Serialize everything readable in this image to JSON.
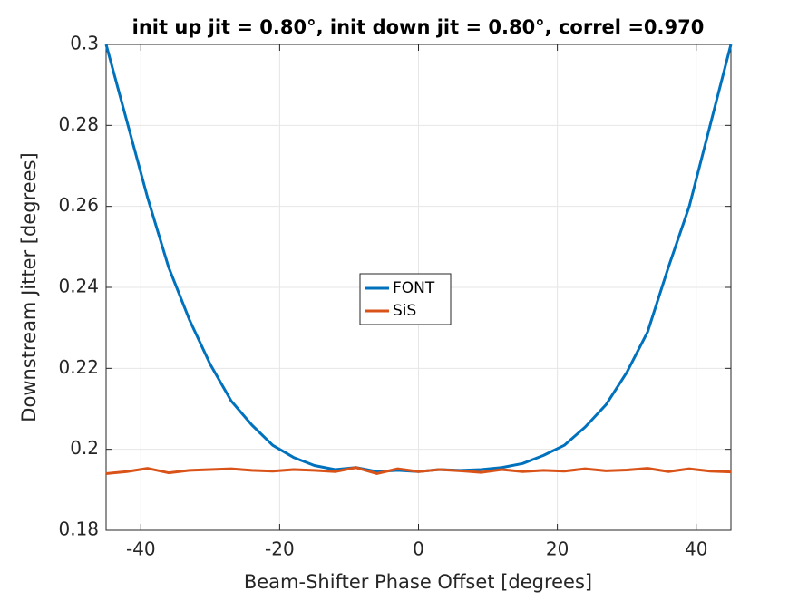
{
  "chart_data": {
    "type": "line",
    "title": "init up jit = 0.80°, init down jit = 0.80°, correl =0.970",
    "xlabel": "Beam-Shifter Phase Offset [degrees]",
    "ylabel": "Downstream Jitter [degrees]",
    "x": [
      -45,
      -42,
      -39,
      -36,
      -33,
      -30,
      -27,
      -24,
      -21,
      -18,
      -15,
      -12,
      -9,
      -6,
      -3,
      0,
      3,
      6,
      9,
      12,
      15,
      18,
      21,
      24,
      27,
      30,
      33,
      36,
      39,
      42,
      45
    ],
    "series": [
      {
        "name": "FONT",
        "color": "#0072bd",
        "values": [
          0.3,
          0.281,
          0.262,
          0.245,
          0.232,
          0.221,
          0.212,
          0.206,
          0.201,
          0.198,
          0.196,
          0.195,
          0.1955,
          0.1945,
          0.1948,
          0.1945,
          0.195,
          0.1948,
          0.195,
          0.1955,
          0.1965,
          0.1985,
          0.201,
          0.2055,
          0.211,
          0.219,
          0.229,
          0.245,
          0.26,
          0.28,
          0.3
        ]
      },
      {
        "name": "SiS",
        "color": "#d95319",
        "values": [
          0.194,
          0.1945,
          0.1953,
          0.1942,
          0.1948,
          0.195,
          0.1952,
          0.1948,
          0.1946,
          0.195,
          0.1948,
          0.1945,
          0.1955,
          0.194,
          0.1952,
          0.1945,
          0.195,
          0.1947,
          0.1943,
          0.195,
          0.1945,
          0.1948,
          0.1946,
          0.1952,
          0.1947,
          0.1949,
          0.1953,
          0.1945,
          0.1952,
          0.1946,
          0.1944
        ]
      }
    ],
    "xlim": [
      -45,
      45
    ],
    "ylim": [
      0.18,
      0.3
    ],
    "xticks": [
      -40,
      -20,
      0,
      20,
      40
    ],
    "yticks": [
      0.18,
      0.2,
      0.22,
      0.24,
      0.26,
      0.28,
      0.3
    ],
    "grid": true,
    "legend": "center"
  }
}
